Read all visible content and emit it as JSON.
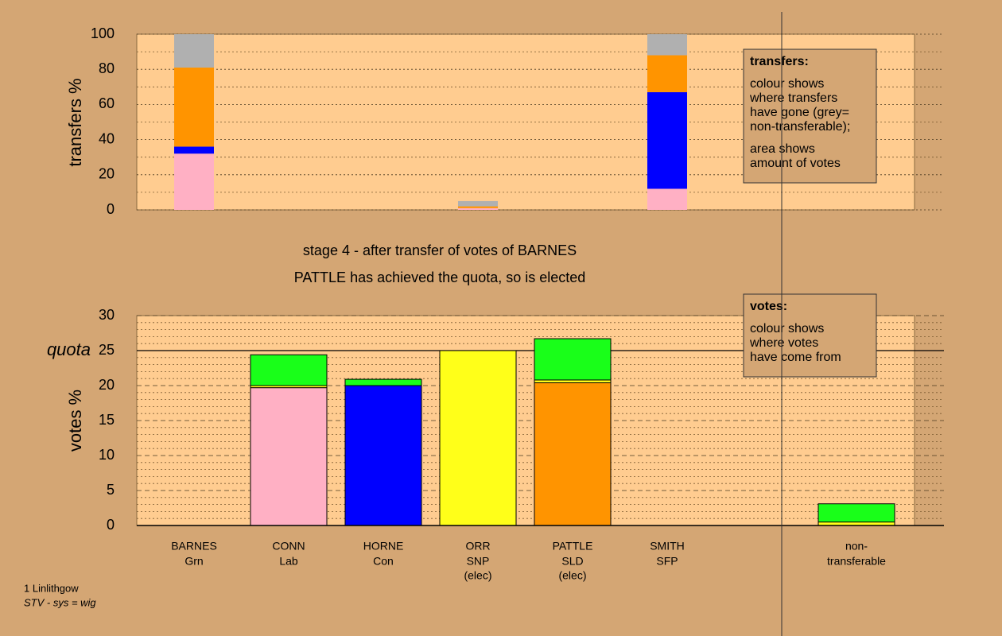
{
  "chart_data": [
    {
      "type": "bar",
      "stacked": true,
      "ylabel": "transfers %",
      "ylim": [
        0,
        100
      ],
      "yticks": [
        0,
        20,
        40,
        60,
        80,
        100
      ],
      "y_minor_ticks": [
        10,
        30,
        50,
        70,
        90
      ],
      "series": [
        {
          "color": "#ffb0c4",
          "values": [
            32,
            0,
            0,
            1,
            0,
            12,
            null,
            null
          ]
        },
        {
          "color": "#0000ff",
          "values": [
            4,
            0,
            0,
            0,
            0,
            55,
            null,
            null
          ]
        },
        {
          "color": "#ff9400",
          "values": [
            45,
            0,
            0,
            1,
            0,
            21,
            null,
            null
          ]
        },
        {
          "color": "#b0b0b0",
          "values": [
            19,
            0,
            0,
            3,
            0,
            12,
            null,
            null
          ]
        }
      ],
      "legend": {
        "title": "transfers:",
        "paragraphs": [
          [
            "colour shows",
            "where transfers",
            "have gone (grey=",
            "non-transferable);"
          ],
          [
            "area shows",
            "amount of votes"
          ]
        ]
      }
    },
    {
      "type": "bar",
      "stacked": true,
      "ylabel": "votes %",
      "categories": [
        "BARNES",
        "CONN",
        "HORNE",
        "ORR",
        "PATTLE",
        "SMITH",
        null,
        "non-"
      ],
      "parties": [
        "Grn",
        "Lab",
        "Con",
        "SNP",
        "SLD",
        "SFP",
        null,
        "transferable"
      ],
      "notes": [
        null,
        null,
        null,
        "(elec)",
        "(elec)",
        null,
        null,
        null
      ],
      "ylim": [
        0,
        30
      ],
      "yticks": [
        0,
        5,
        10,
        15,
        20,
        25,
        30
      ],
      "y_minor_ticks": [
        1,
        2,
        3,
        4,
        6,
        7,
        8,
        9,
        11,
        12,
        13,
        14,
        16,
        17,
        18,
        19,
        21,
        22,
        23,
        24,
        26,
        27,
        28,
        29
      ],
      "quota": 25,
      "quota_label": "quota",
      "series": [
        {
          "color": "#ffb0c4",
          "values": [
            0,
            19.7,
            0,
            0,
            0,
            0,
            null,
            0
          ]
        },
        {
          "color": "#0000ff",
          "values": [
            0,
            0,
            20,
            0,
            0,
            0,
            null,
            0
          ]
        },
        {
          "color": "#ff9400",
          "values": [
            0,
            0,
            0,
            0,
            20.4,
            0,
            null,
            0
          ]
        },
        {
          "color": "#ffff19",
          "values": [
            0,
            0.3,
            0,
            25,
            0.4,
            0,
            null,
            0.5
          ]
        },
        {
          "color": "#19ff19",
          "values": [
            0,
            4.4,
            0.9,
            0,
            5.9,
            0,
            null,
            2.6
          ]
        }
      ],
      "legend": {
        "title": "votes:",
        "paragraphs": [
          [
            "colour shows",
            "where votes",
            "have come from"
          ]
        ]
      }
    }
  ],
  "caption": [
    "stage 4 - after transfer of votes of BARNES",
    "PATTLE has achieved the quota, so is elected"
  ],
  "footer": {
    "place": "1 Linlithgow",
    "system": "STV - sys = wig"
  }
}
